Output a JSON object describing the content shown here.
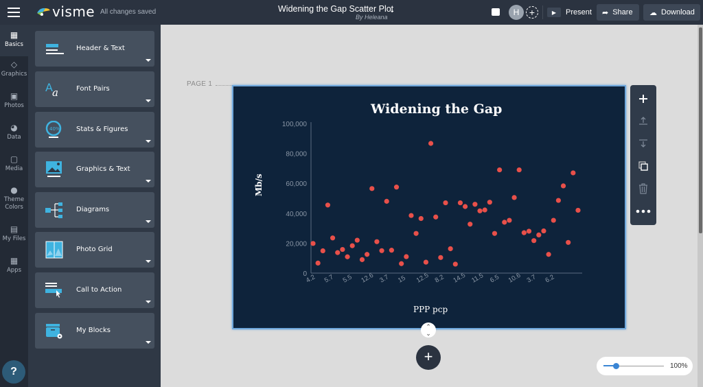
{
  "app": {
    "brand": "visme",
    "status": "All changes saved"
  },
  "document": {
    "title": "Widening the Gap Scatter Plot",
    "author": "By Heleana"
  },
  "header": {
    "avatar_initial": "H",
    "present_label": "Present",
    "share_label": "Share",
    "download_label": "Download"
  },
  "icon_rail": [
    {
      "label": "Basics",
      "icon": "blocks-icon",
      "active": true
    },
    {
      "label": "Graphics",
      "icon": "shapes-icon"
    },
    {
      "label": "Photos",
      "icon": "photo-icon"
    },
    {
      "label": "Data",
      "icon": "pie-chart-icon"
    },
    {
      "label": "Media",
      "icon": "media-icon"
    },
    {
      "label": "Theme",
      "label2": "Colors",
      "icon": "palette-icon"
    },
    {
      "label": "My Files",
      "icon": "folder-upload-icon"
    },
    {
      "label": "Apps",
      "icon": "apps-grid-icon"
    }
  ],
  "help_label": "?",
  "panel": {
    "cards": [
      {
        "label": "Header & Text",
        "icon": "header-text-icon"
      },
      {
        "label": "Font Pairs",
        "icon": "font-pairs-icon"
      },
      {
        "label": "Stats & Figures",
        "icon": "stats-ring-icon",
        "icon_text": "40%"
      },
      {
        "label": "Graphics & Text",
        "icon": "image-text-icon"
      },
      {
        "label": "Diagrams",
        "icon": "diagram-icon"
      },
      {
        "label": "Photo Grid",
        "icon": "photo-grid-icon"
      },
      {
        "label": "Call to Action",
        "icon": "cta-button-icon"
      },
      {
        "label": "My Blocks",
        "icon": "my-blocks-icon"
      }
    ]
  },
  "canvas": {
    "page_label": "PAGE 1",
    "zoom": "100%"
  },
  "colors": {
    "topbar": "#2b3340",
    "slide_bg": "#0e233b",
    "dot": "#e8504a",
    "accent": "#3fb3e0",
    "selection": "#6fa8dc"
  },
  "chart_data": {
    "type": "scatter",
    "title": "Widening the Gap",
    "xlabel": "PPP pcp",
    "ylabel": "Mb/s",
    "ylim": [
      0,
      100000
    ],
    "y_ticks": [
      "0",
      "20,000",
      "40,000",
      "60,000",
      "80,000",
      "100,000"
    ],
    "x_tick_labels": [
      "4.2",
      "5.7",
      "5.5",
      "12.6",
      "3.7",
      "15",
      "12.5",
      "8.2",
      "14.5",
      "11.5",
      "6.5",
      "10.6",
      "3.7",
      "6.2"
    ],
    "grid": false,
    "legend": "none",
    "points": [
      [
        0,
        19800
      ],
      [
        1,
        6700
      ],
      [
        2,
        14900
      ],
      [
        3,
        45500
      ],
      [
        4,
        23500
      ],
      [
        5,
        13700
      ],
      [
        6,
        15800
      ],
      [
        7,
        10900
      ],
      [
        8,
        18300
      ],
      [
        9,
        22000
      ],
      [
        10,
        9000
      ],
      [
        11,
        12500
      ],
      [
        12,
        56500
      ],
      [
        13,
        21000
      ],
      [
        14,
        15000
      ],
      [
        15,
        48000
      ],
      [
        16,
        15300
      ],
      [
        17,
        57500
      ],
      [
        18,
        6300
      ],
      [
        19,
        11000
      ],
      [
        20,
        38500
      ],
      [
        21,
        26500
      ],
      [
        22,
        36500
      ],
      [
        23,
        7300
      ],
      [
        24,
        86700
      ],
      [
        25,
        37500
      ],
      [
        26,
        10400
      ],
      [
        27,
        47000
      ],
      [
        28,
        16300
      ],
      [
        29,
        6000
      ],
      [
        30,
        47000
      ],
      [
        31,
        44500
      ],
      [
        32,
        32700
      ],
      [
        33,
        46000
      ],
      [
        34,
        41600
      ],
      [
        35,
        42200
      ],
      [
        36,
        47400
      ],
      [
        37,
        26500
      ],
      [
        38,
        69000
      ],
      [
        39,
        34000
      ],
      [
        40,
        35300
      ],
      [
        41,
        50500
      ],
      [
        42,
        69000
      ],
      [
        43,
        27000
      ],
      [
        44,
        28000
      ],
      [
        45,
        21700
      ],
      [
        46,
        25500
      ],
      [
        47,
        28200
      ],
      [
        48,
        12500
      ],
      [
        49,
        35300
      ],
      [
        50,
        48600
      ],
      [
        51,
        58300
      ],
      [
        52,
        20500
      ],
      [
        53,
        67000
      ],
      [
        54,
        42000
      ]
    ]
  }
}
